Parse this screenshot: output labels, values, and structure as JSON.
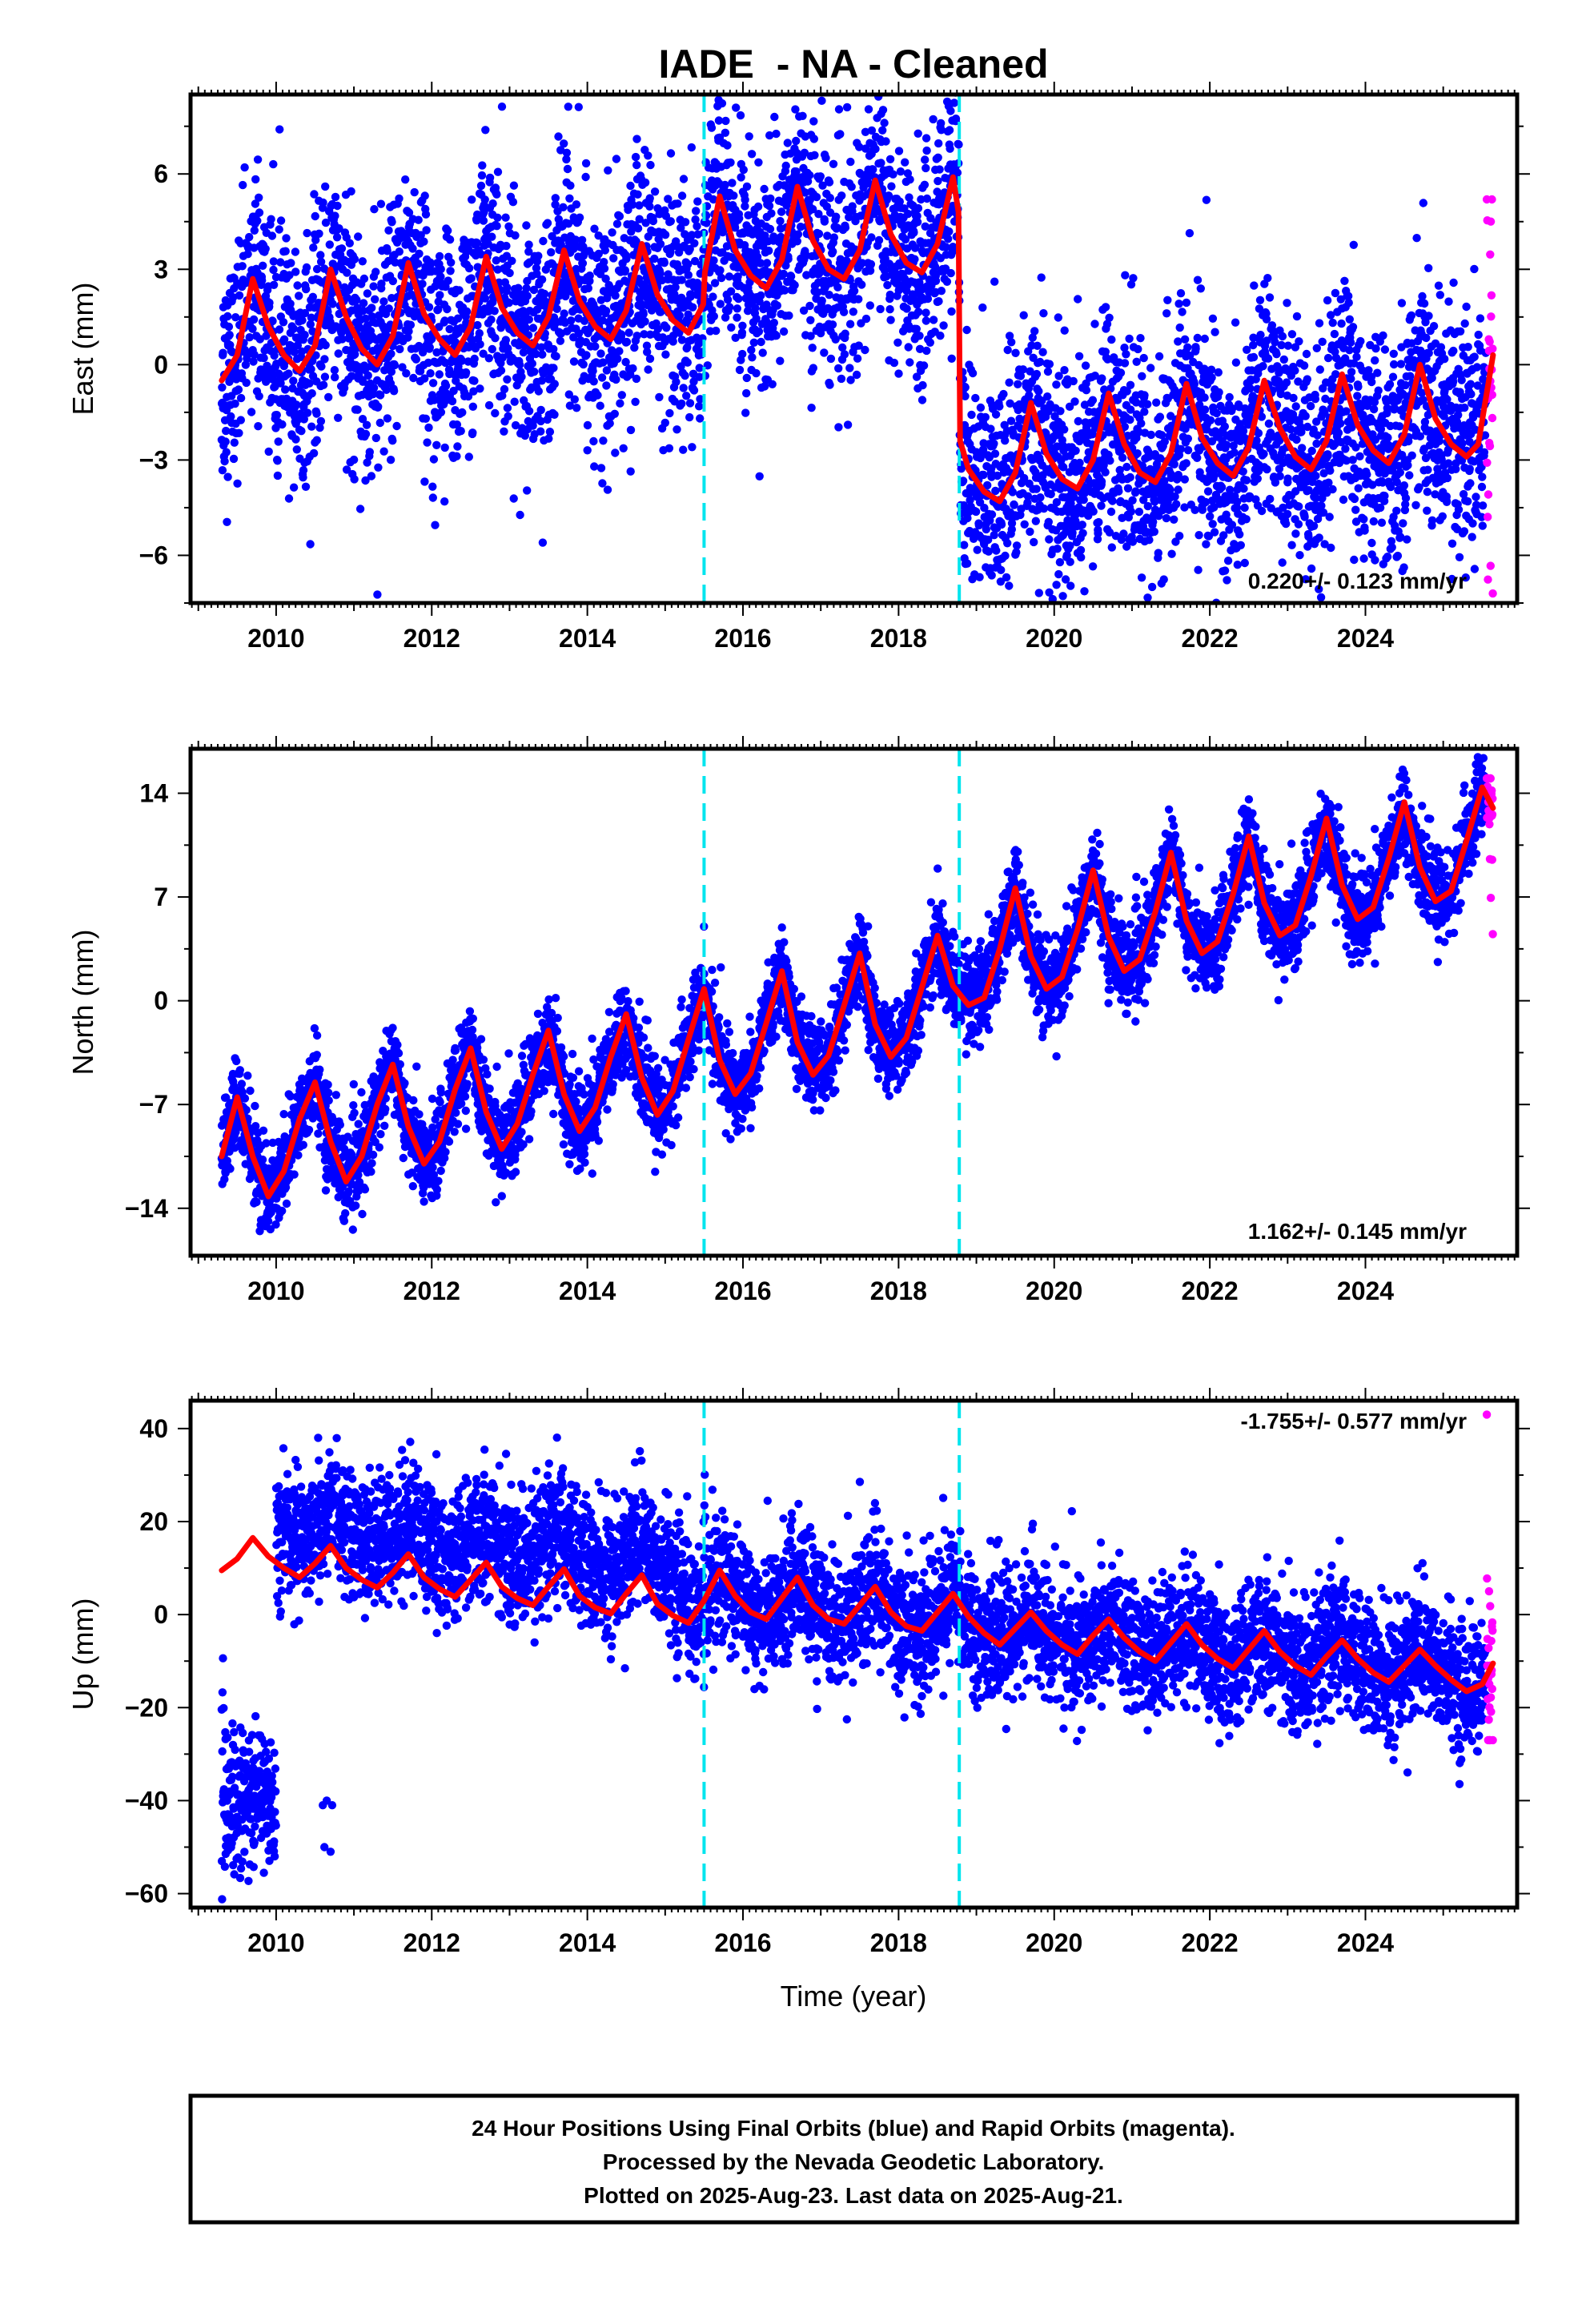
{
  "page": {
    "title": "IADE  - NA - Cleaned",
    "xlabel": "Time (year)",
    "footer": {
      "line1": "24 Hour Positions Using Final Orbits (blue) and Rapid Orbits (magenta).",
      "line2": "Processed by the Nevada Geodetic Laboratory.",
      "line3": "Plotted on 2025-Aug-23. Last data on 2025-Aug-21."
    }
  },
  "colors": {
    "final_orbits": "#0000ff",
    "rapid_orbits": "#ff00ff",
    "model_fit": "#ff0000",
    "event_lines": "#00e5ee",
    "frame": "#000000"
  },
  "chart_data": [
    {
      "type": "scatter",
      "component": "east",
      "ylabel": "East (mm)",
      "rate_label": "0.220+/- 0.123 mm/yr",
      "xlim": [
        2008.9,
        2025.95
      ],
      "ylim": [
        -7.5,
        8.5
      ],
      "x_ticks": [
        2010,
        2012,
        2014,
        2016,
        2018,
        2020,
        2022,
        2024
      ],
      "y_ticks": [
        -6,
        -3,
        0,
        3,
        6
      ],
      "event_lines_x": [
        2015.5,
        2018.78
      ],
      "series": [
        {
          "name": "Final Orbits",
          "color": "#0000ff",
          "style": "dense daily scatter from 2009.3 to 2025.55 around the model curve, scatter approx +/-1.8 mm"
        },
        {
          "name": "Rapid Orbits",
          "color": "#ff00ff",
          "style": "short cluster at 2025.55-2025.64",
          "y_range": [
            -7.2,
            5.2
          ]
        }
      ],
      "model_curve": [
        [
          2009.3,
          -0.5
        ],
        [
          2009.5,
          0.3
        ],
        [
          2009.7,
          2.7
        ],
        [
          2009.9,
          1.2
        ],
        [
          2010.1,
          0.3
        ],
        [
          2010.3,
          -0.2
        ],
        [
          2010.5,
          0.6
        ],
        [
          2010.7,
          3.0
        ],
        [
          2010.9,
          1.5
        ],
        [
          2011.1,
          0.5
        ],
        [
          2011.3,
          0.0
        ],
        [
          2011.5,
          0.9
        ],
        [
          2011.7,
          3.2
        ],
        [
          2011.9,
          1.6
        ],
        [
          2012.1,
          0.8
        ],
        [
          2012.3,
          0.3
        ],
        [
          2012.5,
          1.2
        ],
        [
          2012.7,
          3.4
        ],
        [
          2012.9,
          1.8
        ],
        [
          2013.1,
          1.0
        ],
        [
          2013.3,
          0.6
        ],
        [
          2013.5,
          1.5
        ],
        [
          2013.7,
          3.6
        ],
        [
          2013.9,
          2.0
        ],
        [
          2014.1,
          1.2
        ],
        [
          2014.3,
          0.8
        ],
        [
          2014.5,
          1.7
        ],
        [
          2014.7,
          3.8
        ],
        [
          2014.9,
          2.2
        ],
        [
          2015.1,
          1.4
        ],
        [
          2015.3,
          1.0
        ],
        [
          2015.49,
          1.9
        ],
        [
          2015.51,
          2.9
        ],
        [
          2015.7,
          5.3
        ],
        [
          2015.9,
          3.6
        ],
        [
          2016.1,
          2.8
        ],
        [
          2016.3,
          2.4
        ],
        [
          2016.5,
          3.3
        ],
        [
          2016.7,
          5.6
        ],
        [
          2016.9,
          3.9
        ],
        [
          2017.1,
          3.0
        ],
        [
          2017.3,
          2.7
        ],
        [
          2017.5,
          3.6
        ],
        [
          2017.7,
          5.8
        ],
        [
          2017.9,
          4.1
        ],
        [
          2018.1,
          3.2
        ],
        [
          2018.3,
          2.9
        ],
        [
          2018.5,
          3.8
        ],
        [
          2018.7,
          5.9
        ],
        [
          2018.77,
          4.8
        ],
        [
          2018.79,
          -2.4
        ],
        [
          2018.9,
          -3.3
        ],
        [
          2019.1,
          -4.0
        ],
        [
          2019.3,
          -4.3
        ],
        [
          2019.5,
          -3.4
        ],
        [
          2019.7,
          -1.2
        ],
        [
          2019.9,
          -2.8
        ],
        [
          2020.1,
          -3.6
        ],
        [
          2020.3,
          -3.9
        ],
        [
          2020.5,
          -3.0
        ],
        [
          2020.7,
          -0.9
        ],
        [
          2020.9,
          -2.5
        ],
        [
          2021.1,
          -3.4
        ],
        [
          2021.3,
          -3.7
        ],
        [
          2021.5,
          -2.8
        ],
        [
          2021.7,
          -0.6
        ],
        [
          2021.9,
          -2.3
        ],
        [
          2022.1,
          -3.1
        ],
        [
          2022.3,
          -3.5
        ],
        [
          2022.5,
          -2.6
        ],
        [
          2022.7,
          -0.5
        ],
        [
          2022.9,
          -2.0
        ],
        [
          2023.1,
          -2.9
        ],
        [
          2023.3,
          -3.3
        ],
        [
          2023.5,
          -2.4
        ],
        [
          2023.7,
          -0.3
        ],
        [
          2023.9,
          -1.9
        ],
        [
          2024.1,
          -2.7
        ],
        [
          2024.3,
          -3.1
        ],
        [
          2024.5,
          -2.2
        ],
        [
          2024.7,
          0.0
        ],
        [
          2024.9,
          -1.7
        ],
        [
          2025.1,
          -2.5
        ],
        [
          2025.3,
          -2.9
        ],
        [
          2025.45,
          -2.5
        ],
        [
          2025.64,
          0.3
        ]
      ]
    },
    {
      "type": "scatter",
      "component": "north",
      "ylabel": "North (mm)",
      "rate_label": "1.162+/- 0.145 mm/yr",
      "xlim": [
        2008.9,
        2025.95
      ],
      "ylim": [
        -17.2,
        17.0
      ],
      "x_ticks": [
        2010,
        2012,
        2014,
        2016,
        2018,
        2020,
        2022,
        2024
      ],
      "y_ticks": [
        -14,
        -7,
        0,
        7,
        14
      ],
      "event_lines_x": [
        2015.5,
        2018.78
      ],
      "series": [
        {
          "name": "Final Orbits",
          "color": "#0000ff",
          "style": "dense daily scatter from 2009.3 to 2025.55 around the model curve, scatter approx +/-1.5 mm"
        },
        {
          "name": "Rapid Orbits",
          "color": "#ff00ff",
          "style": "short cluster at 2025.55-2025.64",
          "y_range": [
            4.5,
            15.0
          ]
        }
      ],
      "model_curve": [
        [
          2009.3,
          -10.5
        ],
        [
          2009.5,
          -6.5
        ],
        [
          2009.7,
          -10.5
        ],
        [
          2009.9,
          -13.2
        ],
        [
          2010.1,
          -11.5
        ],
        [
          2010.3,
          -8.0
        ],
        [
          2010.5,
          -5.5
        ],
        [
          2010.7,
          -9.5
        ],
        [
          2010.9,
          -12.2
        ],
        [
          2011.1,
          -10.5
        ],
        [
          2011.3,
          -7.0
        ],
        [
          2011.5,
          -4.3
        ],
        [
          2011.7,
          -8.5
        ],
        [
          2011.9,
          -11.0
        ],
        [
          2012.1,
          -9.5
        ],
        [
          2012.3,
          -6.0
        ],
        [
          2012.5,
          -3.2
        ],
        [
          2012.7,
          -7.5
        ],
        [
          2012.9,
          -10.0
        ],
        [
          2013.1,
          -8.3
        ],
        [
          2013.3,
          -5.0
        ],
        [
          2013.5,
          -2.0
        ],
        [
          2013.7,
          -6.3
        ],
        [
          2013.9,
          -8.8
        ],
        [
          2014.1,
          -7.2
        ],
        [
          2014.3,
          -3.8
        ],
        [
          2014.5,
          -0.9
        ],
        [
          2014.7,
          -5.2
        ],
        [
          2014.9,
          -7.7
        ],
        [
          2015.1,
          -6.1
        ],
        [
          2015.3,
          -2.6
        ],
        [
          2015.5,
          0.8
        ],
        [
          2015.7,
          -4.0
        ],
        [
          2015.9,
          -6.3
        ],
        [
          2016.1,
          -4.9
        ],
        [
          2016.3,
          -1.5
        ],
        [
          2016.5,
          2.0
        ],
        [
          2016.7,
          -2.8
        ],
        [
          2016.9,
          -5.0
        ],
        [
          2017.1,
          -3.7
        ],
        [
          2017.3,
          -0.3
        ],
        [
          2017.5,
          3.2
        ],
        [
          2017.7,
          -1.6
        ],
        [
          2017.9,
          -3.8
        ],
        [
          2018.1,
          -2.5
        ],
        [
          2018.3,
          0.9
        ],
        [
          2018.5,
          4.4
        ],
        [
          2018.7,
          1.0
        ],
        [
          2018.9,
          -0.3
        ],
        [
          2019.1,
          0.2
        ],
        [
          2019.3,
          3.5
        ],
        [
          2019.5,
          7.6
        ],
        [
          2019.7,
          3.0
        ],
        [
          2019.9,
          0.8
        ],
        [
          2020.1,
          1.6
        ],
        [
          2020.3,
          4.8
        ],
        [
          2020.5,
          8.8
        ],
        [
          2020.7,
          4.3
        ],
        [
          2020.9,
          2.0
        ],
        [
          2021.1,
          2.8
        ],
        [
          2021.3,
          6.0
        ],
        [
          2021.5,
          10.0
        ],
        [
          2021.7,
          5.4
        ],
        [
          2021.9,
          3.2
        ],
        [
          2022.1,
          4.0
        ],
        [
          2022.3,
          7.2
        ],
        [
          2022.5,
          11.1
        ],
        [
          2022.7,
          6.6
        ],
        [
          2022.9,
          4.4
        ],
        [
          2023.1,
          5.1
        ],
        [
          2023.3,
          8.4
        ],
        [
          2023.5,
          12.3
        ],
        [
          2023.7,
          7.8
        ],
        [
          2023.9,
          5.5
        ],
        [
          2024.1,
          6.3
        ],
        [
          2024.3,
          9.6
        ],
        [
          2024.5,
          13.4
        ],
        [
          2024.7,
          9.0
        ],
        [
          2024.9,
          6.7
        ],
        [
          2025.1,
          7.4
        ],
        [
          2025.3,
          10.8
        ],
        [
          2025.5,
          14.4
        ],
        [
          2025.64,
          13.0
        ]
      ]
    },
    {
      "type": "scatter",
      "component": "up",
      "ylabel": "Up (mm)",
      "rate_label": "-1.755+/- 0.577 mm/yr",
      "xlim": [
        2008.9,
        2025.95
      ],
      "ylim": [
        -63,
        46
      ],
      "x_ticks": [
        2010,
        2012,
        2014,
        2016,
        2018,
        2020,
        2022,
        2024
      ],
      "y_ticks": [
        -60,
        -40,
        -20,
        0,
        20,
        40
      ],
      "event_lines_x": [
        2015.5,
        2018.78
      ],
      "series": [
        {
          "name": "Final Orbits (early offset cluster)",
          "color": "#0000ff",
          "x_range": [
            2009.3,
            2010.0
          ],
          "y_range": [
            -60,
            -20
          ]
        },
        {
          "name": "Final Orbits",
          "color": "#0000ff",
          "style": "dense daily scatter from 2010.0 to 2025.55, roughly 8 mm above the model before 2015 and centred on it afterwards"
        },
        {
          "name": "Rapid Orbits",
          "color": "#ff00ff",
          "style": "short cluster at 2025.55-2025.64",
          "y_range": [
            -27,
            43
          ]
        }
      ],
      "model_curve": [
        [
          2009.3,
          9.5
        ],
        [
          2009.5,
          12.0
        ],
        [
          2009.7,
          16.5
        ],
        [
          2009.9,
          12.5
        ],
        [
          2010.1,
          10.0
        ],
        [
          2010.3,
          8.0
        ],
        [
          2010.5,
          11.0
        ],
        [
          2010.7,
          14.8
        ],
        [
          2010.9,
          10.0
        ],
        [
          2011.1,
          7.5
        ],
        [
          2011.3,
          5.8
        ],
        [
          2011.5,
          9.0
        ],
        [
          2011.7,
          13.0
        ],
        [
          2011.9,
          8.0
        ],
        [
          2012.1,
          5.5
        ],
        [
          2012.3,
          3.8
        ],
        [
          2012.5,
          7.5
        ],
        [
          2012.7,
          11.2
        ],
        [
          2012.9,
          6.0
        ],
        [
          2013.1,
          3.5
        ],
        [
          2013.3,
          2.0
        ],
        [
          2013.5,
          6.0
        ],
        [
          2013.7,
          9.8
        ],
        [
          2013.9,
          4.0
        ],
        [
          2014.1,
          1.5
        ],
        [
          2014.3,
          0.2
        ],
        [
          2014.5,
          4.5
        ],
        [
          2014.7,
          8.5
        ],
        [
          2014.9,
          2.3
        ],
        [
          2015.1,
          -0.2
        ],
        [
          2015.3,
          -1.8
        ],
        [
          2015.5,
          3.0
        ],
        [
          2015.7,
          9.5
        ],
        [
          2015.9,
          4.0
        ],
        [
          2016.1,
          0.5
        ],
        [
          2016.3,
          -1.0
        ],
        [
          2016.5,
          3.5
        ],
        [
          2016.7,
          8.0
        ],
        [
          2016.9,
          2.0
        ],
        [
          2017.1,
          -1.0
        ],
        [
          2017.3,
          -2.0
        ],
        [
          2017.5,
          2.0
        ],
        [
          2017.7,
          6.0
        ],
        [
          2017.9,
          0.5
        ],
        [
          2018.1,
          -2.5
        ],
        [
          2018.3,
          -3.5
        ],
        [
          2018.5,
          0.5
        ],
        [
          2018.7,
          4.5
        ],
        [
          2018.9,
          -0.5
        ],
        [
          2019.1,
          -4.0
        ],
        [
          2019.3,
          -6.5
        ],
        [
          2019.5,
          -3.0
        ],
        [
          2019.7,
          0.5
        ],
        [
          2019.9,
          -3.5
        ],
        [
          2020.1,
          -6.5
        ],
        [
          2020.3,
          -8.5
        ],
        [
          2020.5,
          -4.5
        ],
        [
          2020.7,
          -1.0
        ],
        [
          2020.9,
          -5.0
        ],
        [
          2021.1,
          -8.0
        ],
        [
          2021.3,
          -10.0
        ],
        [
          2021.5,
          -6.0
        ],
        [
          2021.7,
          -2.0
        ],
        [
          2021.9,
          -6.5
        ],
        [
          2022.1,
          -9.5
        ],
        [
          2022.3,
          -11.5
        ],
        [
          2022.5,
          -7.5
        ],
        [
          2022.7,
          -3.5
        ],
        [
          2022.9,
          -8.0
        ],
        [
          2023.1,
          -11.0
        ],
        [
          2023.3,
          -13.0
        ],
        [
          2023.5,
          -9.0
        ],
        [
          2023.7,
          -5.5
        ],
        [
          2023.9,
          -9.5
        ],
        [
          2024.1,
          -12.5
        ],
        [
          2024.3,
          -14.5
        ],
        [
          2024.5,
          -11.0
        ],
        [
          2024.7,
          -7.5
        ],
        [
          2024.9,
          -11.0
        ],
        [
          2025.1,
          -14.0
        ],
        [
          2025.3,
          -16.5
        ],
        [
          2025.5,
          -15.0
        ],
        [
          2025.64,
          -10.5
        ]
      ]
    }
  ]
}
